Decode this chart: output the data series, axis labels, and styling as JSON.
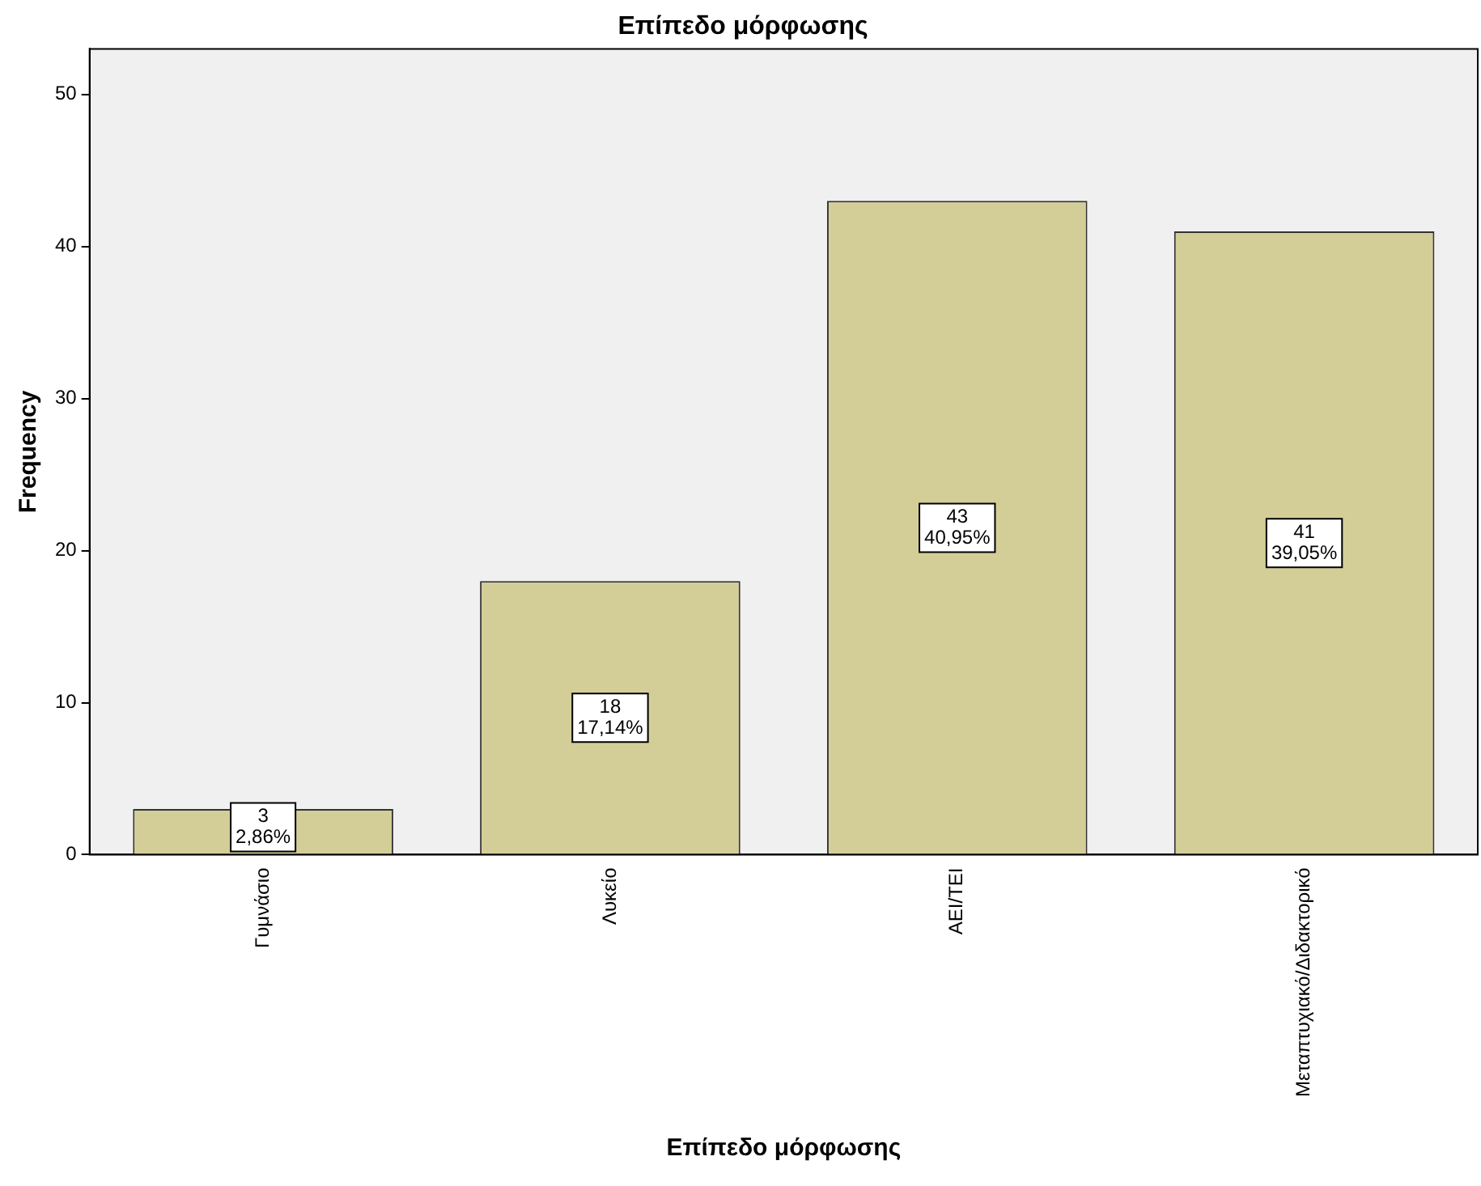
{
  "chart_data": {
    "type": "bar",
    "title": "Επίπεδο μόρφωσης",
    "xlabel": "Επίπεδο μόρφωσης",
    "ylabel": "Frequency",
    "categories": [
      "Γυμνάσιο",
      "Λυκείο",
      "ΑΕΙ/ΤΕΙ",
      "Μεταπτυχιακό/Διδακτορικό"
    ],
    "values": [
      3,
      18,
      43,
      41
    ],
    "color": "#d3ce97",
    "value_labels": [
      "3\n2,86%",
      "18\n17,14%",
      "43\n40,95%",
      "41\n39,05%"
    ],
    "ylim": [
      0,
      53
    ],
    "yticks": [
      0,
      10,
      20,
      30,
      40,
      50
    ],
    "grid": false,
    "legend": false
  }
}
